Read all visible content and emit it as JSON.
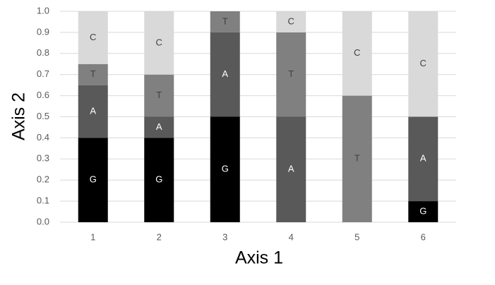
{
  "chart_data": {
    "type": "stacked_bar",
    "x_label": "Axis 1",
    "y_label": "Axis 2",
    "categories": [
      "1",
      "2",
      "3",
      "4",
      "5",
      "6"
    ],
    "series": [
      {
        "name": "G",
        "color": "#000000",
        "label_color": "#ffffff",
        "values": [
          0.4,
          0.4,
          0.5,
          0,
          0,
          0.1
        ]
      },
      {
        "name": "A",
        "color": "#595959",
        "label_color": "#ffffff",
        "values": [
          0.25,
          0.1,
          0.4,
          0.5,
          0,
          0.4
        ]
      },
      {
        "name": "T",
        "color": "#808080",
        "label_color": "#404040",
        "values": [
          0.1,
          0.2,
          0.1,
          0.4,
          0.6,
          0
        ]
      },
      {
        "name": "C",
        "color": "#d9d9d9",
        "label_color": "#404040",
        "values": [
          0.25,
          0.3,
          0,
          0.1,
          0.4,
          0.5
        ]
      }
    ],
    "ylim": [
      0,
      1
    ],
    "yticks": [
      {
        "value": 0,
        "label": "0.0"
      },
      0.1,
      0.2,
      0.3,
      0.4,
      0.5,
      0.6,
      0.7,
      0.8,
      0.9,
      {
        "value": 1,
        "label": "1.0"
      }
    ],
    "grid": true
  }
}
